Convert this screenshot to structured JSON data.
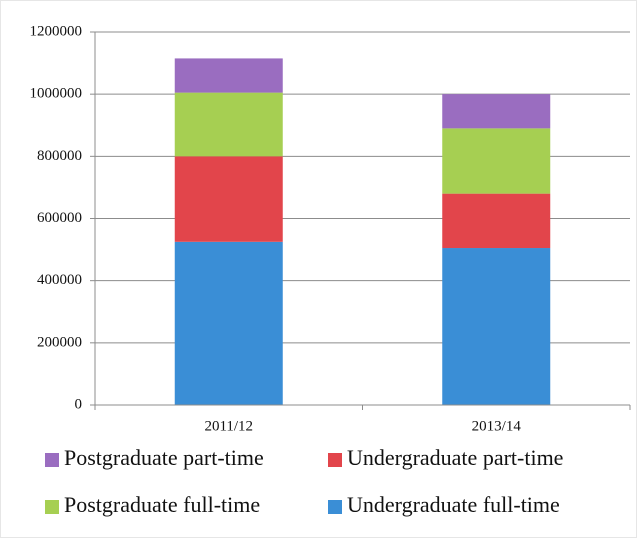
{
  "chart_data": {
    "type": "stacked_bar",
    "categories": [
      "2011/12",
      "2013/14"
    ],
    "series": [
      {
        "name": "Undergraduate full-time",
        "color": "#3a8ed6",
        "values": [
          525000,
          505000
        ]
      },
      {
        "name": "Undergraduate part-time",
        "color": "#e2454b",
        "values": [
          275000,
          175000
        ]
      },
      {
        "name": "Postgraduate full-time",
        "color": "#a6cf52",
        "values": [
          205000,
          210000
        ]
      },
      {
        "name": "Postgraduate part-time",
        "color": "#9a6dc0",
        "values": [
          110000,
          110000
        ]
      }
    ],
    "ylim": [
      0,
      1200000
    ],
    "yticks": [
      0,
      200000,
      400000,
      600000,
      800000,
      1000000,
      1200000
    ],
    "grid": true
  }
}
